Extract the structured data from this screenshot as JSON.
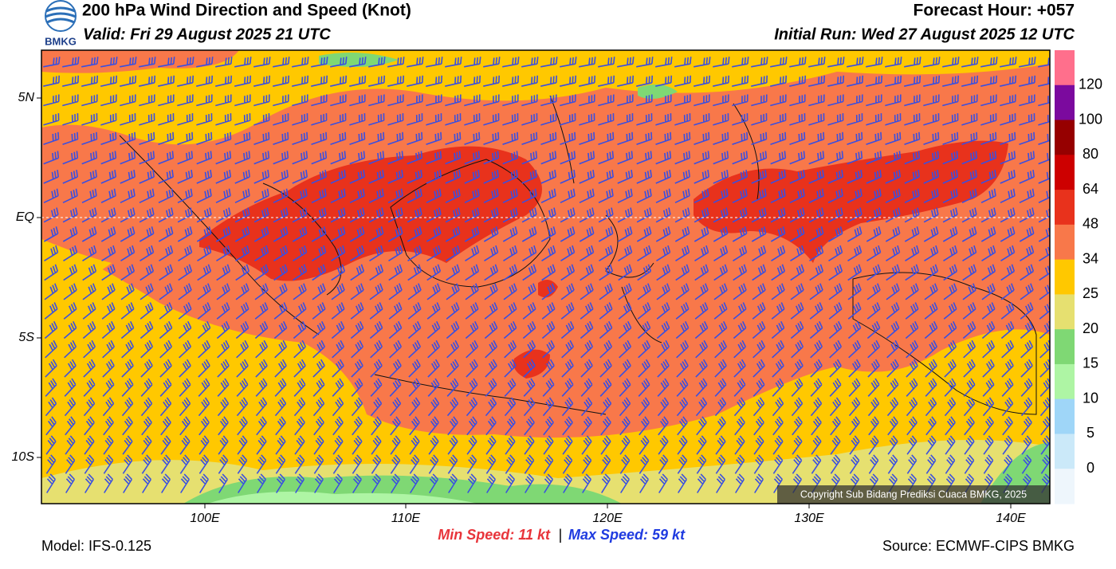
{
  "header": {
    "title": "200 hPa Wind Direction and Speed (Knot)",
    "valid": "Valid: Fri 29 August 2025 21 UTC",
    "forecast_hour": "Forecast Hour: +057",
    "initial_run": "Initial Run: Wed 27 August 2025 12 UTC",
    "logo_text": "BMKG"
  },
  "axes": {
    "x_labels": [
      "100E",
      "110E",
      "120E",
      "130E",
      "140E"
    ],
    "y_labels": [
      "5N",
      "EQ",
      "5S",
      "10S"
    ]
  },
  "colorbar": {
    "colors": [
      "#ff6f8c",
      "#7b0a9e",
      "#960000",
      "#cd0000",
      "#e8321c",
      "#f8784a",
      "#ffc800",
      "#e6e070",
      "#7fd874",
      "#aef5a4",
      "#9fd6f8",
      "#cbe9f9",
      "#eef6fc"
    ],
    "labels": [
      120,
      100,
      80,
      64,
      48,
      34,
      25,
      20,
      15,
      10,
      5,
      0
    ]
  },
  "footer": {
    "min_speed": "Min Speed:  11 kt",
    "separator": "|",
    "max_speed": "Max Speed:  59 kt",
    "model": "Model: IFS-0.125",
    "source": "Source: ECMWF-CIPS BMKG",
    "copyright": "Copyright Sub Bidang Prediksi Cuaca BMKG, 2025"
  }
}
